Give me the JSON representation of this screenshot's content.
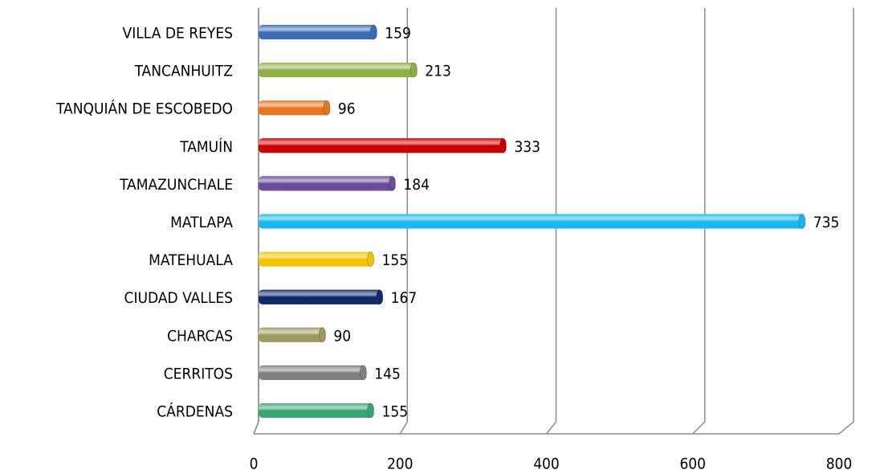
{
  "chart_data": {
    "type": "bar",
    "orientation": "horizontal",
    "categories": [
      "VILLA DE REYES",
      "TANCANHUITZ",
      "TANQUIÁN DE ESCOBEDO",
      "TAMUÍN",
      "TAMAZUNCHALE",
      "MATLAPA",
      "MATEHUALA",
      "CIUDAD VALLES",
      "CHARCAS",
      "CERRITOS",
      "CÁRDENAS"
    ],
    "values": [
      159,
      213,
      96,
      333,
      184,
      735,
      155,
      167,
      90,
      145,
      155
    ],
    "colors": [
      "#3a6db5",
      "#8db045",
      "#e8761f",
      "#cc0000",
      "#6b4c9a",
      "#1ab8f0",
      "#f5c400",
      "#0f2a6b",
      "#a09a60",
      "#808080",
      "#3aa574"
    ],
    "xlim": [
      0,
      800
    ],
    "xticks": [
      0,
      200,
      400,
      600,
      800
    ],
    "grid": true
  }
}
